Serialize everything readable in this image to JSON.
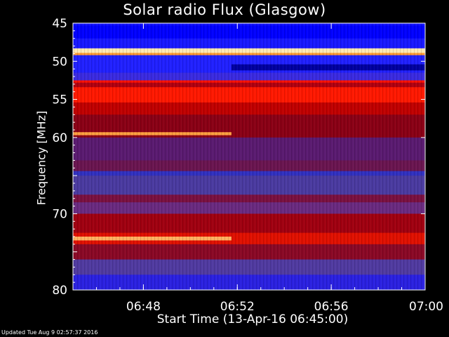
{
  "chart_data": {
    "type": "heatmap",
    "title": "Solar radio Flux (Glasgow)",
    "xlabel": "Start Time (13-Apr-16 06:45:00)",
    "ylabel": "Frequency [MHz]",
    "ylim": [
      45,
      80
    ],
    "y_inverted": true,
    "yticks": [
      45,
      50,
      55,
      60,
      70,
      80
    ],
    "x_start": "06:45",
    "x_end": "07:00",
    "xticks": [
      "06:48",
      "06:52",
      "06:56",
      "07:00"
    ],
    "colormap": [
      "#0000ff",
      "#2020ff",
      "#4a3fd0",
      "#6a2b9a",
      "#8a0a2a",
      "#c20000",
      "#ff1a00",
      "#ff7a2a",
      "#ffe0a0"
    ],
    "bands": [
      {
        "freq_from": 45.0,
        "freq_to": 45.3,
        "color": "#1010ff"
      },
      {
        "freq_from": 45.3,
        "freq_to": 47.0,
        "color": "#0000ff"
      },
      {
        "freq_from": 47.0,
        "freq_to": 48.3,
        "color": "#1818ff"
      },
      {
        "freq_from": 48.3,
        "freq_to": 48.9,
        "color": "#ffe8b0"
      },
      {
        "freq_from": 48.9,
        "freq_to": 49.2,
        "color": "#ff9a30"
      },
      {
        "freq_from": 49.2,
        "freq_to": 51.5,
        "color": "#2020ff"
      },
      {
        "freq_from": 51.5,
        "freq_to": 52.5,
        "color": "#3a2ae0"
      },
      {
        "freq_from": 52.5,
        "freq_to": 52.8,
        "color": "#ff1000"
      },
      {
        "freq_from": 52.8,
        "freq_to": 53.4,
        "color": "#b00010"
      },
      {
        "freq_from": 53.4,
        "freq_to": 55.4,
        "color": "#ff1800"
      },
      {
        "freq_from": 55.4,
        "freq_to": 57.0,
        "color": "#c00000"
      },
      {
        "freq_from": 57.0,
        "freq_to": 60.0,
        "color": "#8a0015"
      },
      {
        "freq_from": 60.0,
        "freq_to": 63.0,
        "color": "#5a1a70"
      },
      {
        "freq_from": 63.0,
        "freq_to": 64.4,
        "color": "#6a1550"
      },
      {
        "freq_from": 64.4,
        "freq_to": 65.0,
        "color": "#3030c0"
      },
      {
        "freq_from": 65.0,
        "freq_to": 67.5,
        "color": "#4a3aa0"
      },
      {
        "freq_from": 67.5,
        "freq_to": 68.5,
        "color": "#7a1040"
      },
      {
        "freq_from": 68.5,
        "freq_to": 70.0,
        "color": "#6a2a80"
      },
      {
        "freq_from": 70.0,
        "freq_to": 72.5,
        "color": "#a00010"
      },
      {
        "freq_from": 72.5,
        "freq_to": 74.0,
        "color": "#e01000"
      },
      {
        "freq_from": 74.0,
        "freq_to": 76.0,
        "color": "#8a0825"
      },
      {
        "freq_from": 76.0,
        "freq_to": 78.0,
        "color": "#503aa0"
      },
      {
        "freq_from": 78.0,
        "freq_to": 80.0,
        "color": "#2a20e0"
      }
    ],
    "partial_bands": [
      {
        "freq_from": 50.4,
        "freq_to": 51.2,
        "time_from": "06:51:45",
        "time_to": "07:00",
        "color": "#0000a0"
      },
      {
        "freq_from": 59.3,
        "freq_to": 59.7,
        "time_from": "06:45",
        "time_to": "06:51:45",
        "color": "#ffa040"
      },
      {
        "freq_from": 73.0,
        "freq_to": 73.5,
        "time_from": "06:45",
        "time_to": "06:51:45",
        "color": "#ffb060"
      }
    ],
    "footer": "Updated Tue Aug  9 02:57:37 2016"
  }
}
